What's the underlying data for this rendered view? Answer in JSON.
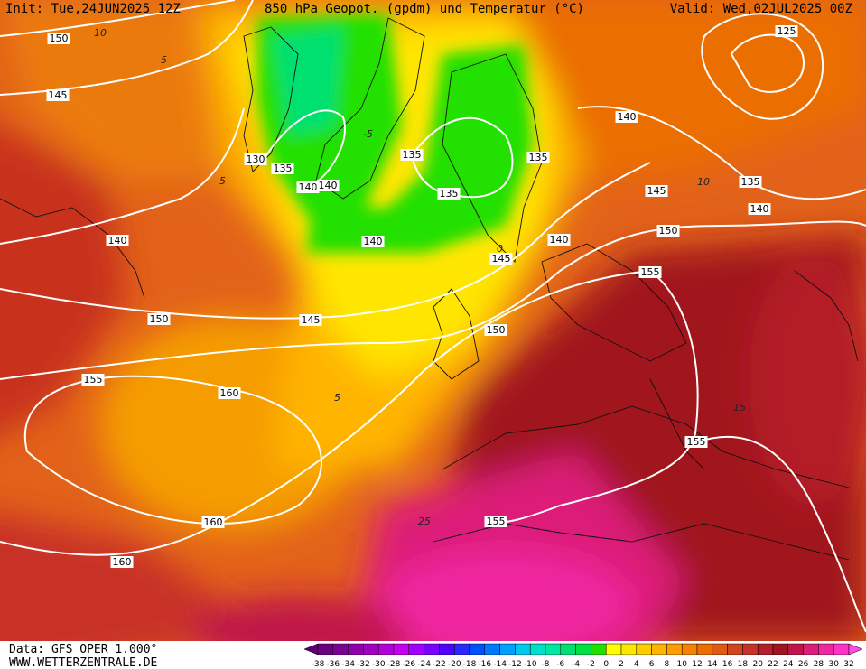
{
  "header": {
    "init": "Init: Tue,24JUN2025 12Z",
    "title": "850 hPa Geopot. (gpdm) und Temperatur (°C)",
    "valid": "Valid: Wed,02JUL2025 00Z"
  },
  "map": {
    "geopotential_labels": [
      150,
      145,
      140,
      150,
      155,
      160,
      160,
      160,
      130,
      135,
      140,
      140,
      135,
      135,
      140,
      145,
      145,
      150,
      135,
      140,
      140,
      145,
      150,
      155,
      135,
      140,
      125,
      155,
      155
    ],
    "temperature_labels": [
      10,
      5,
      5,
      -5,
      5,
      0,
      25,
      15,
      10
    ]
  },
  "colorbar": {
    "labels": [
      -38,
      -36,
      -34,
      -32,
      -30,
      -28,
      -26,
      -24,
      -22,
      -20,
      -18,
      -16,
      -14,
      -12,
      -10,
      -8,
      -6,
      -4,
      -2,
      0,
      2,
      4,
      6,
      8,
      10,
      12,
      14,
      16,
      18,
      20,
      22,
      24,
      26,
      28,
      30,
      32
    ],
    "colors": [
      "#5a0070",
      "#6a0080",
      "#7d0095",
      "#9000aa",
      "#a000c0",
      "#b400d8",
      "#c800f0",
      "#a000ff",
      "#7800ff",
      "#5000ff",
      "#2828ff",
      "#0050ff",
      "#0078ff",
      "#00a0ff",
      "#00c8f0",
      "#00e0c8",
      "#00e8a0",
      "#00e070",
      "#00e040",
      "#20e000",
      "#ffff00",
      "#ffe600",
      "#ffcc00",
      "#ffb400",
      "#ff9c00",
      "#f58200",
      "#eb6e00",
      "#e05a14",
      "#d2461e",
      "#c83228",
      "#b41e28",
      "#a0141e",
      "#c0144a",
      "#dc1e78",
      "#f028a0",
      "#ff32c8",
      "#ff46e6"
    ]
  },
  "footer": {
    "data": "Data: GFS OPER 1.000°",
    "site": "WWW.WETTERZENTRALE.DE"
  }
}
